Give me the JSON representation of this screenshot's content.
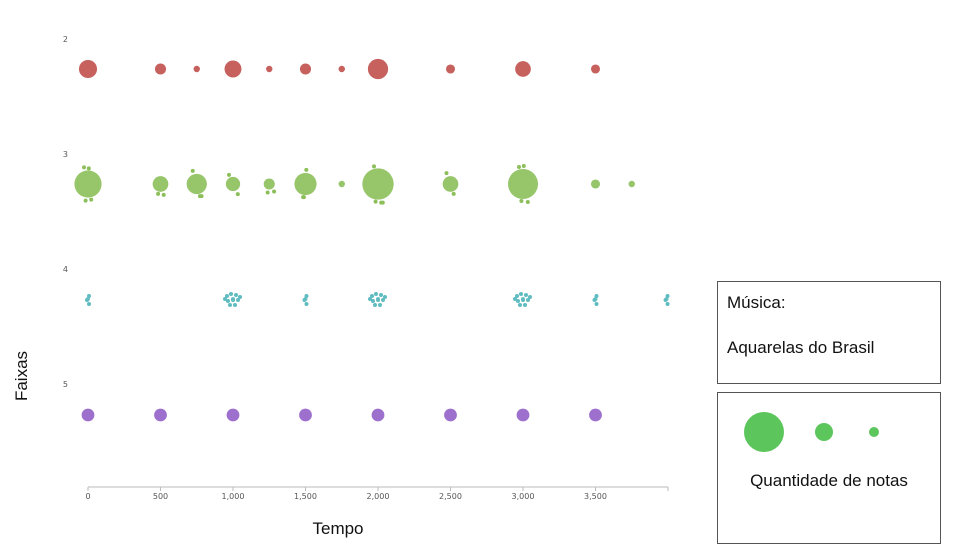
{
  "colors": {
    "lane_2": "#c0504d",
    "lane_3": "#8cbf5a",
    "lane_4": "#5fbcc0",
    "lane_5": "#9461c9",
    "legend": "#5cc65c",
    "axis": "#bbbbbb"
  },
  "chart_data": {
    "type": "scatter",
    "title": "",
    "xlabel": "Tempo",
    "ylabel": "Faixas",
    "xlim": [
      0,
      4000
    ],
    "xticks": [
      0,
      500,
      1000,
      1500,
      2000,
      2500,
      3000,
      3500
    ],
    "xtick_labels": [
      "0",
      "500",
      "1,000",
      "1,500",
      "2,000",
      "2,500",
      "3,000",
      "3,500"
    ],
    "lanes": [
      "2",
      "3",
      "4",
      "5"
    ],
    "series": [
      {
        "lane": "2",
        "points": [
          {
            "x": 0,
            "size": 8
          },
          {
            "x": 500,
            "size": 3
          },
          {
            "x": 750,
            "size": 1
          },
          {
            "x": 1000,
            "size": 7
          },
          {
            "x": 1250,
            "size": 1
          },
          {
            "x": 1500,
            "size": 3
          },
          {
            "x": 1750,
            "size": 1
          },
          {
            "x": 2000,
            "size": 10
          },
          {
            "x": 2500,
            "size": 2
          },
          {
            "x": 3000,
            "size": 6
          },
          {
            "x": 3500,
            "size": 2
          }
        ]
      },
      {
        "lane": "3",
        "points": [
          {
            "x": 0,
            "size": 18
          },
          {
            "x": 500,
            "size": 6
          },
          {
            "x": 750,
            "size": 10
          },
          {
            "x": 1000,
            "size": 5
          },
          {
            "x": 1250,
            "size": 3
          },
          {
            "x": 1500,
            "size": 12
          },
          {
            "x": 1750,
            "size": 1
          },
          {
            "x": 2000,
            "size": 24
          },
          {
            "x": 2500,
            "size": 6
          },
          {
            "x": 3000,
            "size": 22
          },
          {
            "x": 3500,
            "size": 2
          },
          {
            "x": 3750,
            "size": 1
          }
        ]
      },
      {
        "lane": "4",
        "points": [
          {
            "x": 0,
            "size": 1
          },
          {
            "x": 1000,
            "size": 1
          },
          {
            "x": 1500,
            "size": 1
          },
          {
            "x": 2000,
            "size": 1
          },
          {
            "x": 3000,
            "size": 1
          },
          {
            "x": 3500,
            "size": 1
          },
          {
            "x": 3990,
            "size": 1
          }
        ]
      },
      {
        "lane": "5",
        "points": [
          {
            "x": 0,
            "size": 4
          },
          {
            "x": 500,
            "size": 4
          },
          {
            "x": 1000,
            "size": 4
          },
          {
            "x": 1500,
            "size": 4
          },
          {
            "x": 2000,
            "size": 4
          },
          {
            "x": 2500,
            "size": 4
          },
          {
            "x": 3000,
            "size": 4
          },
          {
            "x": 3500,
            "size": 4
          }
        ]
      }
    ]
  },
  "music_panel": {
    "label": "Música:",
    "name": "Aquarelas do Brasil"
  },
  "size_legend": {
    "title": "Quantidade de notas",
    "sizes": [
      20,
      9,
      5
    ]
  }
}
